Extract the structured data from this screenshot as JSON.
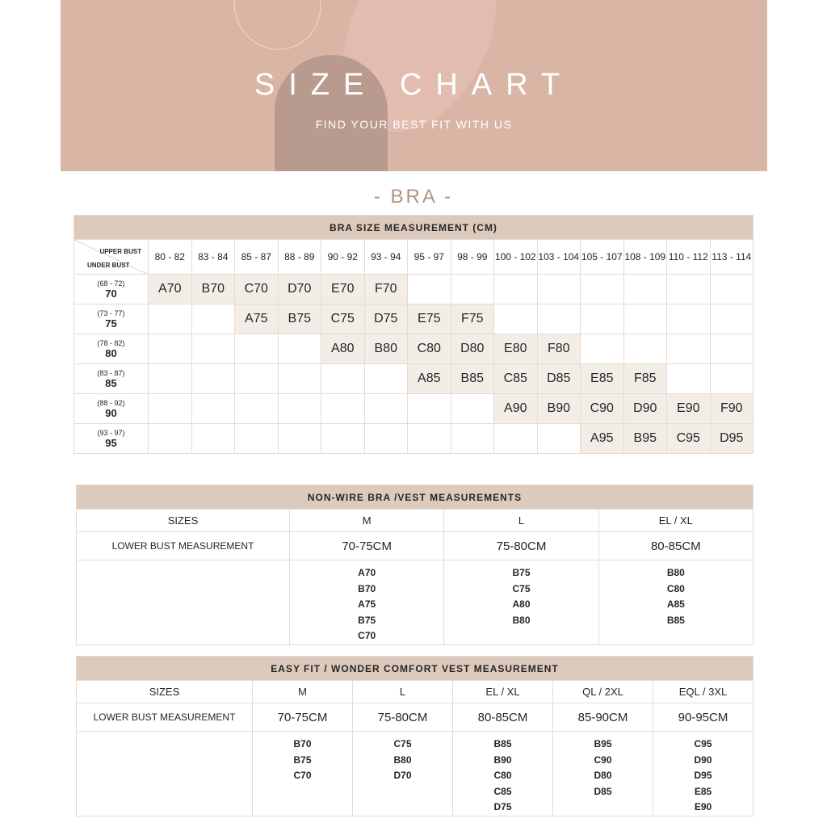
{
  "banner": {
    "title": "SIZE CHART",
    "subtitle": "FIND YOUR BEST FIT WITH US"
  },
  "section_title": "- BRA -",
  "bra_table": {
    "title": "BRA SIZE MEASUREMENT (CM)",
    "upper_bust_label": "UPPER BUST",
    "under_bust_label": "UNDER BUST",
    "columns": [
      "80 - 82",
      "83 - 84",
      "85 - 87",
      "88 - 89",
      "90 - 92",
      "93 - 94",
      "95 - 97",
      "98 - 99",
      "100 - 102",
      "103 - 104",
      "105 - 107",
      "108 - 109",
      "110 - 112",
      "113 - 114"
    ],
    "rows": [
      {
        "range": "(68 - 72)",
        "value": "70",
        "cells": [
          "A70",
          "B70",
          "C70",
          "D70",
          "E70",
          "F70",
          "",
          "",
          "",
          "",
          "",
          "",
          "",
          ""
        ]
      },
      {
        "range": "(73 - 77)",
        "value": "75",
        "cells": [
          "",
          "",
          "A75",
          "B75",
          "C75",
          "D75",
          "E75",
          "F75",
          "",
          "",
          "",
          "",
          "",
          ""
        ]
      },
      {
        "range": "(78 - 82)",
        "value": "80",
        "cells": [
          "",
          "",
          "",
          "",
          "A80",
          "B80",
          "C80",
          "D80",
          "E80",
          "F80",
          "",
          "",
          "",
          ""
        ]
      },
      {
        "range": "(83 - 87)",
        "value": "85",
        "cells": [
          "",
          "",
          "",
          "",
          "",
          "",
          "A85",
          "B85",
          "C85",
          "D85",
          "E85",
          "F85",
          "",
          ""
        ]
      },
      {
        "range": "(88 - 92)",
        "value": "90",
        "cells": [
          "",
          "",
          "",
          "",
          "",
          "",
          "",
          "",
          "A90",
          "B90",
          "C90",
          "D90",
          "E90",
          "F90"
        ]
      },
      {
        "range": "(93 - 97)",
        "value": "95",
        "cells": [
          "",
          "",
          "",
          "",
          "",
          "",
          "",
          "",
          "",
          "",
          "A95",
          "B95",
          "C95",
          "D95"
        ]
      }
    ]
  },
  "nonwire_table": {
    "title": "NON-WIRE BRA /VEST MEASUREMENTS",
    "sizes_label": "SIZES",
    "measure_label": "LOWER BUST MEASUREMENT",
    "columns": [
      {
        "size": "M",
        "measure": "70-75CM",
        "fits": [
          "A70",
          "B70",
          "A75",
          "B75",
          "C70"
        ]
      },
      {
        "size": "L",
        "measure": "75-80CM",
        "fits": [
          "B75",
          "C75",
          "A80",
          "B80"
        ]
      },
      {
        "size": "EL / XL",
        "measure": "80-85CM",
        "fits": [
          "B80",
          "C80",
          "A85",
          "B85"
        ]
      }
    ]
  },
  "easyfit_table": {
    "title": "EASY FIT  / WONDER COMFORT VEST MEASUREMENT",
    "sizes_label": "SIZES",
    "measure_label": "LOWER BUST MEASUREMENT",
    "columns": [
      {
        "size": "M",
        "measure": "70-75CM",
        "fits": [
          "B70",
          "B75",
          "C70"
        ]
      },
      {
        "size": "L",
        "measure": "75-80CM",
        "fits": [
          "C75",
          "B80",
          "D70"
        ]
      },
      {
        "size": "EL / XL",
        "measure": "80-85CM",
        "fits": [
          "B85",
          "B90",
          "C80",
          "C85",
          "D75"
        ]
      },
      {
        "size": "QL / 2XL",
        "measure": "85-90CM",
        "fits": [
          "B95",
          "C90",
          "D80",
          "D85"
        ]
      },
      {
        "size": "EQL / 3XL",
        "measure": "90-95CM",
        "fits": [
          "C95",
          "D90",
          "D95",
          "E85",
          "E90"
        ]
      }
    ]
  },
  "colors": {
    "banner": "#d9b5a6",
    "header_band": "#dccabd",
    "filled_cell": "#f3ede8",
    "accent_text": "#b49284"
  }
}
